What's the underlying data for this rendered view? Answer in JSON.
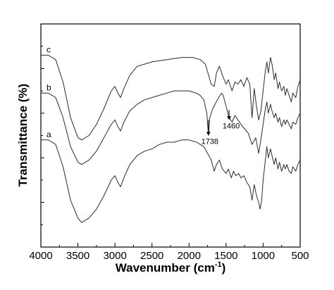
{
  "chart_data": {
    "type": "line",
    "xlabel": "Wavenumber (cm",
    "xlabel_superscript": "-1",
    "xlabel_close": ")",
    "ylabel": "Transmittance (%)",
    "xlim": [
      4000,
      500
    ],
    "x_reversed": true,
    "x_ticks": [
      "4000",
      "3500",
      "3000",
      "2500",
      "2000",
      "1500",
      "1000",
      "500"
    ],
    "y_ticks_labeled": false,
    "ylim": [
      0,
      100
    ],
    "grid": false,
    "series": [
      {
        "name": "c",
        "points": [
          [
            4000,
            86
          ],
          [
            3900,
            86
          ],
          [
            3800,
            84
          ],
          [
            3700,
            74
          ],
          [
            3600,
            58
          ],
          [
            3500,
            49
          ],
          [
            3450,
            48
          ],
          [
            3350,
            50
          ],
          [
            3250,
            55
          ],
          [
            3150,
            62
          ],
          [
            3050,
            70
          ],
          [
            3000,
            72
          ],
          [
            2960,
            69
          ],
          [
            2925,
            67
          ],
          [
            2880,
            71
          ],
          [
            2800,
            77
          ],
          [
            2700,
            81
          ],
          [
            2600,
            82
          ],
          [
            2500,
            83
          ],
          [
            2300,
            84
          ],
          [
            2100,
            85
          ],
          [
            1950,
            85
          ],
          [
            1850,
            84
          ],
          [
            1780,
            82
          ],
          [
            1700,
            73
          ],
          [
            1660,
            72
          ],
          [
            1630,
            78
          ],
          [
            1590,
            81
          ],
          [
            1550,
            77
          ],
          [
            1500,
            73
          ],
          [
            1470,
            75
          ],
          [
            1420,
            70
          ],
          [
            1380,
            74
          ],
          [
            1340,
            73
          ],
          [
            1300,
            75
          ],
          [
            1260,
            72
          ],
          [
            1220,
            76
          ],
          [
            1180,
            73
          ],
          [
            1150,
            58
          ],
          [
            1120,
            71
          ],
          [
            1090,
            63
          ],
          [
            1060,
            57
          ],
          [
            1030,
            61
          ],
          [
            1000,
            70
          ],
          [
            970,
            79
          ],
          [
            950,
            83
          ],
          [
            930,
            78
          ],
          [
            900,
            85
          ],
          [
            880,
            82
          ],
          [
            850,
            75
          ],
          [
            830,
            78
          ],
          [
            800,
            71
          ],
          [
            780,
            74
          ],
          [
            750,
            70
          ],
          [
            720,
            72
          ],
          [
            700,
            68
          ],
          [
            680,
            71
          ],
          [
            650,
            68
          ],
          [
            620,
            65
          ],
          [
            600,
            69
          ],
          [
            560,
            67
          ],
          [
            530,
            72
          ],
          [
            500,
            75
          ]
        ]
      },
      {
        "name": "b",
        "points": [
          [
            4000,
            69
          ],
          [
            3900,
            69
          ],
          [
            3800,
            67
          ],
          [
            3700,
            58
          ],
          [
            3600,
            45
          ],
          [
            3500,
            38
          ],
          [
            3450,
            37
          ],
          [
            3350,
            39
          ],
          [
            3250,
            43
          ],
          [
            3150,
            49
          ],
          [
            3050,
            55
          ],
          [
            3000,
            57
          ],
          [
            2960,
            54
          ],
          [
            2925,
            52
          ],
          [
            2880,
            56
          ],
          [
            2800,
            61
          ],
          [
            2700,
            64
          ],
          [
            2600,
            66
          ],
          [
            2500,
            67
          ],
          [
            2400,
            68
          ],
          [
            2300,
            69
          ],
          [
            2200,
            70
          ],
          [
            2100,
            70
          ],
          [
            2000,
            70
          ],
          [
            1900,
            69
          ],
          [
            1850,
            68
          ],
          [
            1800,
            66
          ],
          [
            1760,
            60
          ],
          [
            1738,
            50
          ],
          [
            1720,
            58
          ],
          [
            1680,
            62
          ],
          [
            1650,
            64
          ],
          [
            1600,
            67
          ],
          [
            1560,
            69
          ],
          [
            1540,
            68
          ],
          [
            1500,
            63
          ],
          [
            1460,
            58
          ],
          [
            1420,
            56
          ],
          [
            1380,
            59
          ],
          [
            1340,
            57
          ],
          [
            1300,
            55
          ],
          [
            1250,
            53
          ],
          [
            1200,
            51
          ],
          [
            1150,
            46
          ],
          [
            1100,
            49
          ],
          [
            1060,
            42
          ],
          [
            1040,
            46
          ],
          [
            1000,
            55
          ],
          [
            970,
            62
          ],
          [
            950,
            65
          ],
          [
            930,
            60
          ],
          [
            900,
            64
          ],
          [
            880,
            61
          ],
          [
            850,
            58
          ],
          [
            830,
            60
          ],
          [
            800,
            56
          ],
          [
            780,
            58
          ],
          [
            750,
            54
          ],
          [
            720,
            57
          ],
          [
            700,
            55
          ],
          [
            680,
            57
          ],
          [
            650,
            55
          ],
          [
            620,
            53
          ],
          [
            600,
            56
          ],
          [
            560,
            55
          ],
          [
            530,
            58
          ],
          [
            500,
            60
          ]
        ]
      },
      {
        "name": "a",
        "points": [
          [
            4000,
            48
          ],
          [
            3900,
            48
          ],
          [
            3800,
            46
          ],
          [
            3700,
            36
          ],
          [
            3600,
            21
          ],
          [
            3500,
            13
          ],
          [
            3450,
            11
          ],
          [
            3350,
            13
          ],
          [
            3250,
            17
          ],
          [
            3150,
            23
          ],
          [
            3050,
            30
          ],
          [
            3000,
            32
          ],
          [
            2960,
            29
          ],
          [
            2925,
            27
          ],
          [
            2880,
            31
          ],
          [
            2800,
            37
          ],
          [
            2700,
            41
          ],
          [
            2600,
            43
          ],
          [
            2500,
            44
          ],
          [
            2400,
            46
          ],
          [
            2300,
            47
          ],
          [
            2200,
            47
          ],
          [
            2100,
            48
          ],
          [
            2000,
            48
          ],
          [
            1900,
            47
          ],
          [
            1850,
            46
          ],
          [
            1800,
            45
          ],
          [
            1750,
            42
          ],
          [
            1700,
            39
          ],
          [
            1660,
            34
          ],
          [
            1630,
            37
          ],
          [
            1590,
            39
          ],
          [
            1550,
            35
          ],
          [
            1500,
            33
          ],
          [
            1470,
            35
          ],
          [
            1430,
            31
          ],
          [
            1400,
            34
          ],
          [
            1370,
            32
          ],
          [
            1330,
            33
          ],
          [
            1300,
            31
          ],
          [
            1260,
            32
          ],
          [
            1220,
            29
          ],
          [
            1180,
            27
          ],
          [
            1150,
            21
          ],
          [
            1120,
            28
          ],
          [
            1090,
            23
          ],
          [
            1060,
            20
          ],
          [
            1040,
            17
          ],
          [
            1020,
            21
          ],
          [
            1000,
            30
          ],
          [
            970,
            39
          ],
          [
            950,
            45
          ],
          [
            930,
            40
          ],
          [
            900,
            44
          ],
          [
            880,
            41
          ],
          [
            850,
            37
          ],
          [
            830,
            40
          ],
          [
            800,
            35
          ],
          [
            780,
            38
          ],
          [
            750,
            34
          ],
          [
            720,
            37
          ],
          [
            700,
            35
          ],
          [
            680,
            37
          ],
          [
            650,
            34
          ],
          [
            620,
            33
          ],
          [
            600,
            36
          ],
          [
            560,
            34
          ],
          [
            530,
            37
          ],
          [
            500,
            39
          ]
        ]
      }
    ],
    "annotations": [
      {
        "text": "1460",
        "x": 1460,
        "y_from": 61.5,
        "y_to": 57
      },
      {
        "text": "1738",
        "x": 1738,
        "y_from": 57,
        "y_to": 50
      }
    ]
  }
}
